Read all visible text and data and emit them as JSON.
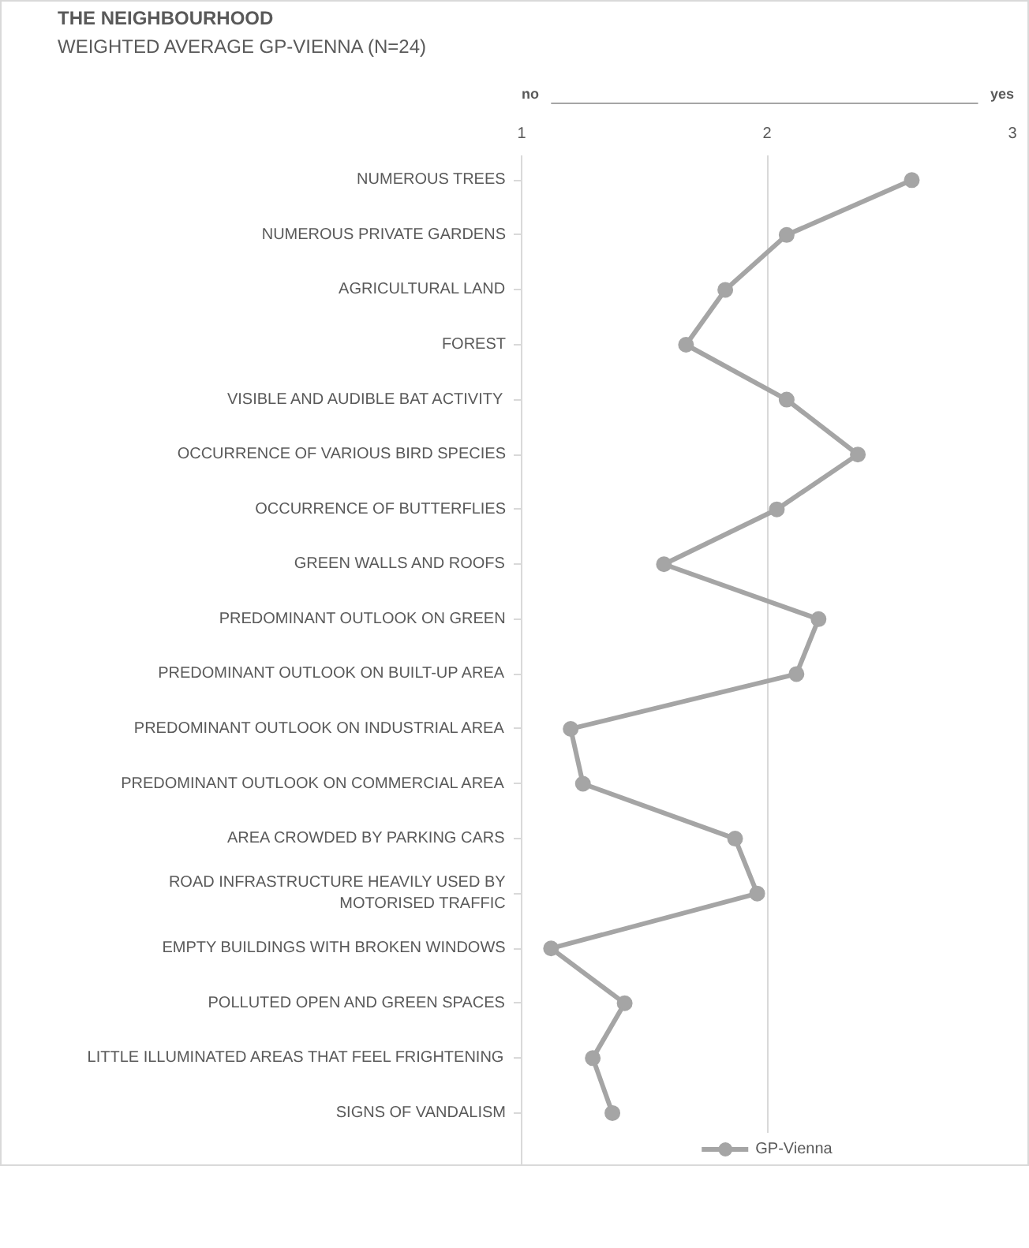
{
  "chart_data": {
    "type": "line",
    "orientation": "horizontal",
    "title": "THE NEIGHBOURHOOD",
    "subtitle": "WEIGHTED AVERAGE GP-VIENNA (N=24)",
    "categories": [
      "NUMEROUS TREES",
      "NUMEROUS PRIVATE GARDENS",
      "AGRICULTURAL LAND",
      "FOREST",
      "VISIBLE AND AUDIBLE BAT ACTIVITY",
      "OCCURRENCE OF VARIOUS BIRD SPECIES",
      "OCCURRENCE OF BUTTERFLIES",
      "GREEN WALLS AND ROOFS",
      "PREDOMINANT OUTLOOK ON GREEN",
      "PREDOMINANT OUTLOOK ON BUILT-UP AREA",
      "PREDOMINANT OUTLOOK ON INDUSTRIAL AREA",
      "PREDOMINANT OUTLOOK ON COMMERCIAL AREA",
      "AREA CROWDED BY PARKING CARS",
      "ROAD INFRASTRUCTURE HEAVILY USED BY MOTORISED TRAFFIC",
      "EMPTY BUILDINGS WITH BROKEN WINDOWS",
      "POLLUTED OPEN AND GREEN SPACES",
      "LITTLE ILLUMINATED AREAS THAT FEEL FRIGHTENING",
      "SIGNS OF VANDALISM"
    ],
    "series": [
      {
        "name": "GP-Vienna",
        "color": "#a5a5a5",
        "values": [
          2.59,
          2.08,
          1.83,
          1.67,
          2.08,
          2.37,
          2.04,
          1.58,
          2.21,
          2.12,
          1.2,
          1.25,
          1.87,
          1.96,
          1.12,
          1.42,
          1.29,
          1.37
        ]
      }
    ],
    "xlim": [
      1,
      3
    ],
    "xticks": [
      1,
      2,
      3
    ],
    "grid": "x",
    "legend": "bottom",
    "marker": "circle",
    "line_style": "solid",
    "annotations": [
      "no",
      "yes"
    ]
  }
}
